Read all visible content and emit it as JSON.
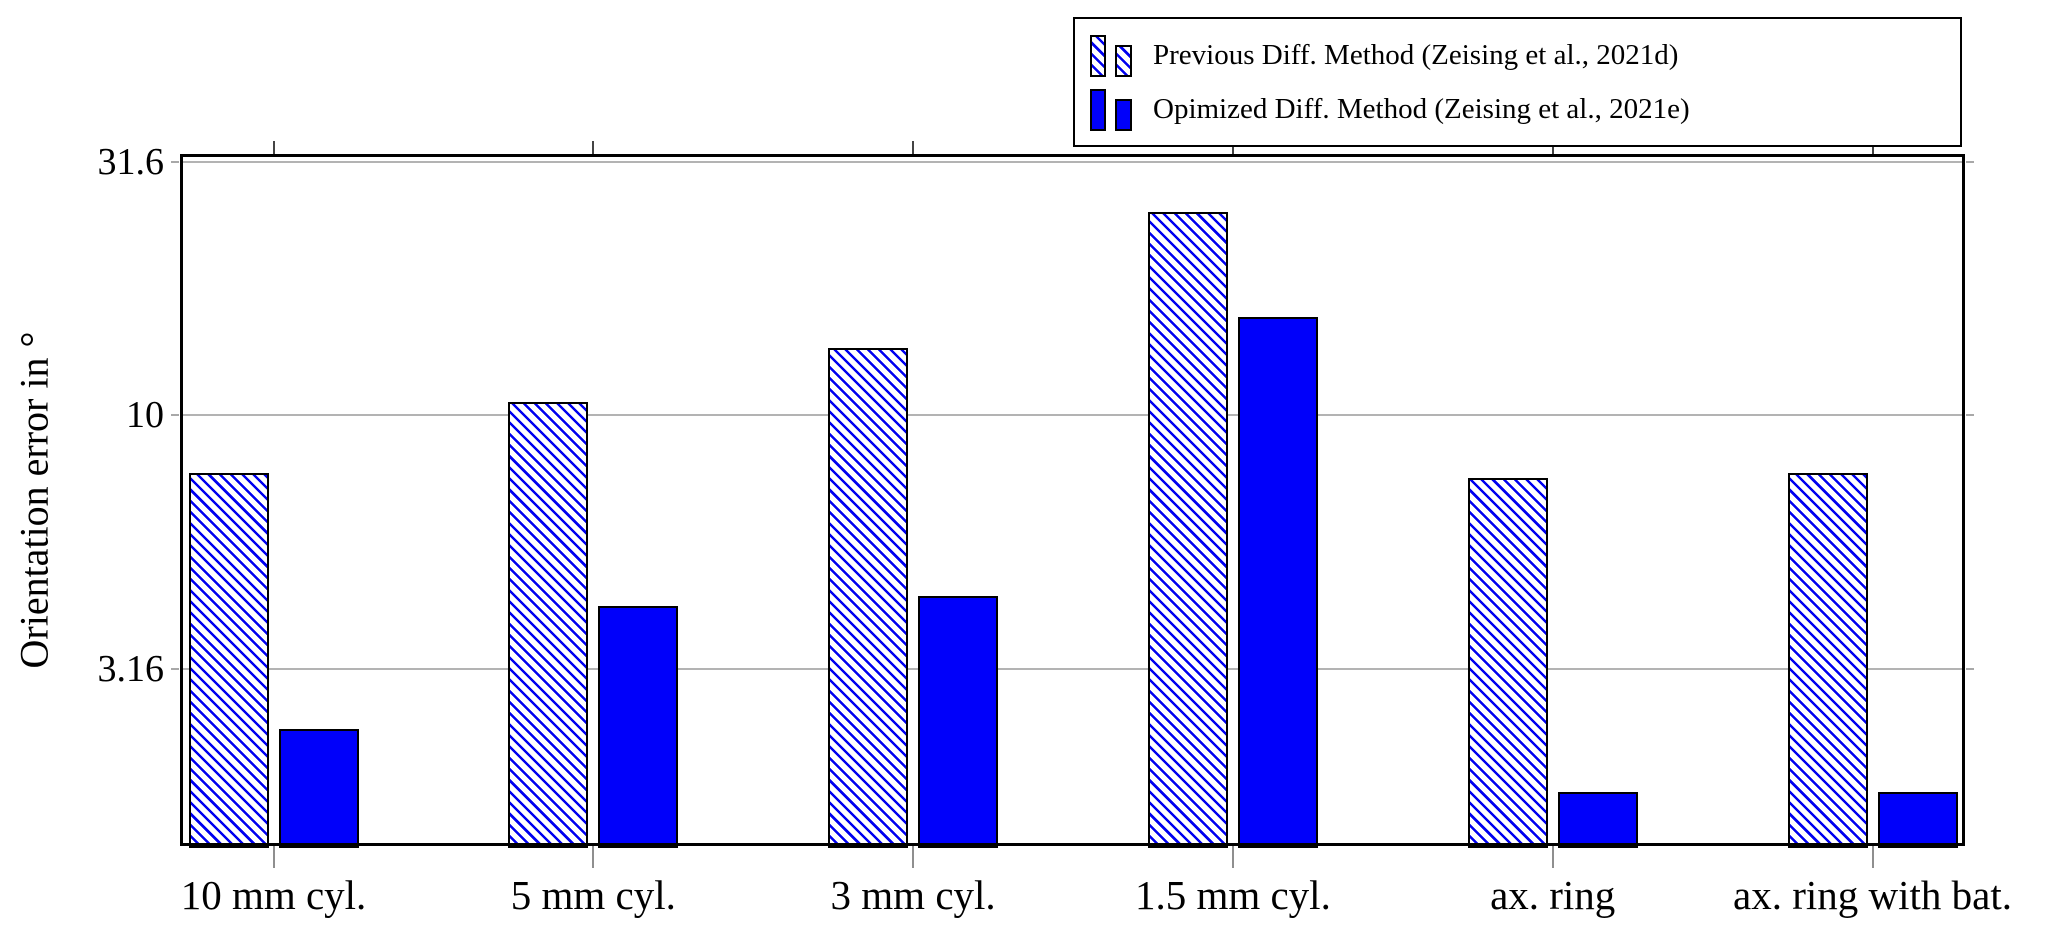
{
  "chart_data": {
    "type": "bar",
    "y_scale": "log",
    "categories": [
      "10 mm cyl.",
      "5 mm cyl.",
      "3 mm cyl.",
      "1.5 mm cyl.",
      "ax. ring",
      "ax. ring with bat."
    ],
    "series": [
      {
        "name": "Previous Diff. Method (Zeising et al., 2021d)",
        "style": "hatched",
        "values": [
          7.7,
          10.6,
          13.6,
          25.2,
          7.5,
          7.7
        ]
      },
      {
        "name": "Opimized Diff. Method (Zeising et al., 2021e)",
        "style": "solid",
        "values": [
          2.4,
          4.2,
          4.4,
          15.6,
          1.8,
          1.8
        ]
      }
    ],
    "xlabel": "",
    "ylabel": "Orientation error in °",
    "ylim": [
      1.41,
      32.8
    ],
    "y_ticks": [
      {
        "value": 31.6,
        "label": "31.6"
      },
      {
        "value": 10,
        "label": "10"
      },
      {
        "value": 3.16,
        "label": "3.16"
      }
    ],
    "grid": "horizontal",
    "legend_position": "top-right",
    "colors": {
      "bar_fill": "#0000fa",
      "hatch_line": "#0000f0",
      "bar_border": "#000000",
      "grid_line": "#b3b3b3",
      "axis": "#000000",
      "category_tick": "#8f8f8f"
    }
  }
}
